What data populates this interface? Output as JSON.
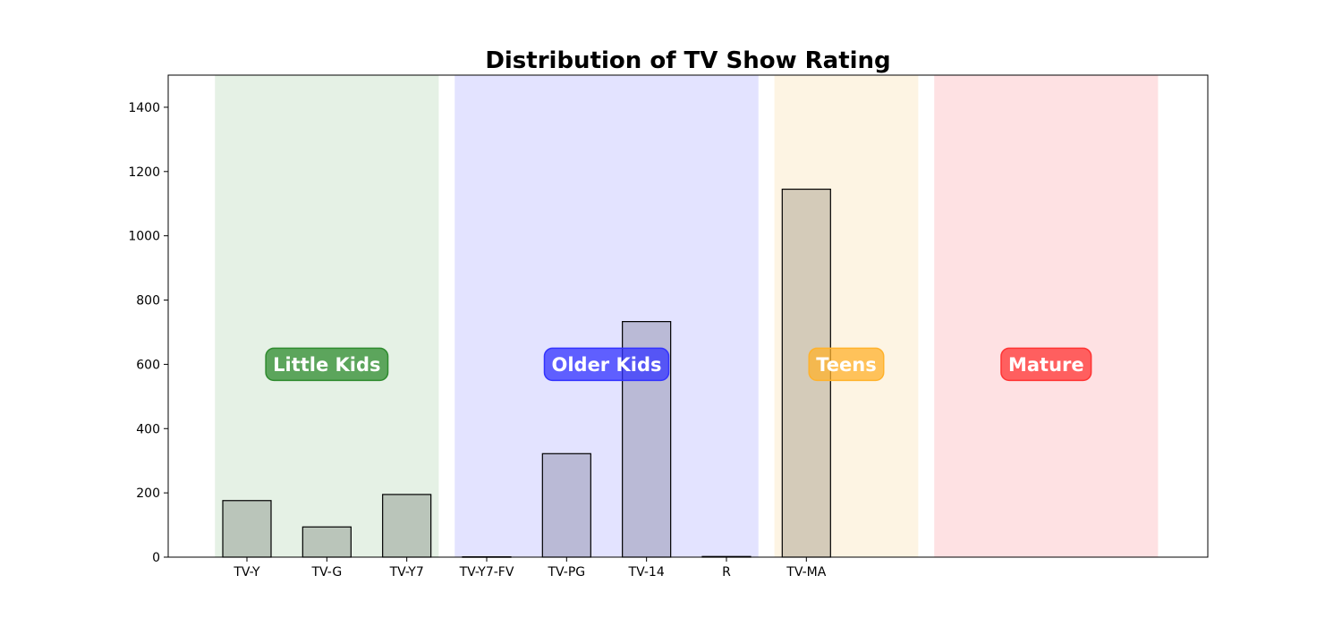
{
  "chart_data": {
    "type": "bar",
    "title": "Distribution of TV Show Rating",
    "xlabel": "",
    "ylabel": "",
    "categories": [
      "TV-Y",
      "TV-G",
      "TV-Y7",
      "TV-Y7-FV",
      "TV-PG",
      "TV-14",
      "R",
      "TV-MA"
    ],
    "values": [
      176,
      94,
      195,
      1,
      322,
      733,
      2,
      1145
    ],
    "ylim": [
      0,
      1500
    ],
    "yticks": [
      0,
      200,
      400,
      600,
      800,
      1000,
      1200,
      1400
    ],
    "grid": false,
    "groups": [
      {
        "label": "Little Kids",
        "color": "#2e8b2e",
        "span": [
          -0.4,
          2.4
        ],
        "band_color": "#e5f1e5",
        "bar_color": "#bac5ba"
      },
      {
        "label": "Older Kids",
        "color": "#3333ff",
        "span": [
          2.6,
          6.4
        ],
        "band_color": "#e3e3ff",
        "bar_color": "#babad6"
      },
      {
        "label": "Teens",
        "color": "#ffb22c",
        "span": [
          6.6,
          8.4
        ],
        "band_color": "#fdf4e3",
        "bar_color": "#d4cbb9"
      },
      {
        "label": "Mature",
        "color": "#ff3333",
        "span": [
          8.6,
          11.4
        ],
        "band_color": "#fee1e3",
        "bar_color": "#d4cbb9"
      }
    ],
    "group_label_y": 600
  }
}
